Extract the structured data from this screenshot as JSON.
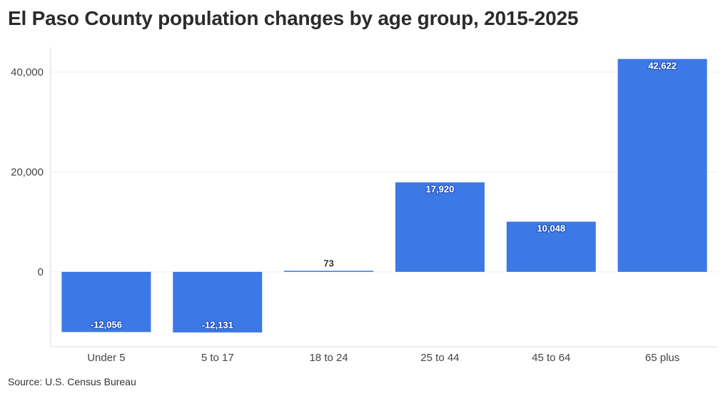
{
  "title": "El Paso County population changes by age group, 2015-2025",
  "source": "Source: U.S. Census Bureau",
  "colors": {
    "bar": "#3c78e6",
    "grid": "#ececec",
    "axis": "#dddddd"
  },
  "chart_data": {
    "type": "bar",
    "title": "El Paso County population changes by age group, 2015-2025",
    "xlabel": "",
    "ylabel": "",
    "categories": [
      "Under 5",
      "5 to 17",
      "18 to 24",
      "25 to 44",
      "45 to 64",
      "65 plus"
    ],
    "values": [
      -12056,
      -12131,
      73,
      17920,
      10048,
      42622
    ],
    "value_labels": [
      "-12,056",
      "-12,131",
      "73",
      "17,920",
      "10,048",
      "42,622"
    ],
    "yticks": [
      0,
      20000,
      40000
    ],
    "ytick_labels": [
      "0",
      "20,000",
      "40,000"
    ],
    "ylim": [
      -15000,
      45000
    ],
    "grid": true,
    "legend": "none"
  }
}
